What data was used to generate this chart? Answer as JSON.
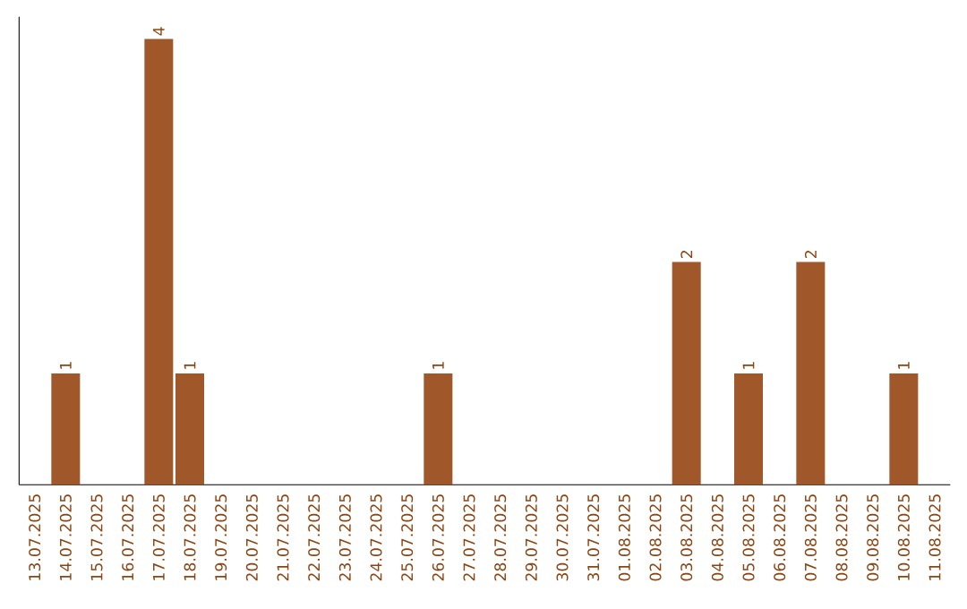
{
  "chart_data": {
    "type": "bar",
    "categories": [
      "13.07.2025",
      "14.07.2025",
      "15.07.2025",
      "16.07.2025",
      "17.07.2025",
      "18.07.2025",
      "19.07.2025",
      "20.07.2025",
      "21.07.2025",
      "22.07.2025",
      "23.07.2025",
      "24.07.2025",
      "25.07.2025",
      "26.07.2025",
      "27.07.2025",
      "28.07.2025",
      "29.07.2025",
      "30.07.2025",
      "31.07.2025",
      "01.08.2025",
      "02.08.2025",
      "03.08.2025",
      "04.08.2025",
      "05.08.2025",
      "06.08.2025",
      "07.08.2025",
      "08.08.2025",
      "09.08.2025",
      "10.08.2025",
      "11.08.2025"
    ],
    "values": [
      0,
      1,
      0,
      0,
      4,
      1,
      0,
      0,
      0,
      0,
      0,
      0,
      0,
      1,
      0,
      0,
      0,
      0,
      0,
      0,
      0,
      2,
      0,
      1,
      0,
      2,
      0,
      0,
      1,
      0
    ],
    "value_labels": [
      null,
      "1",
      null,
      null,
      "4",
      "1",
      null,
      null,
      null,
      null,
      null,
      null,
      null,
      "1",
      null,
      null,
      null,
      null,
      null,
      null,
      null,
      "2",
      null,
      "1",
      null,
      "2",
      null,
      null,
      "1",
      null
    ],
    "color": "#a0582a",
    "ylim": [
      0,
      4.2
    ],
    "tick_labels": "x",
    "grid": false
  }
}
